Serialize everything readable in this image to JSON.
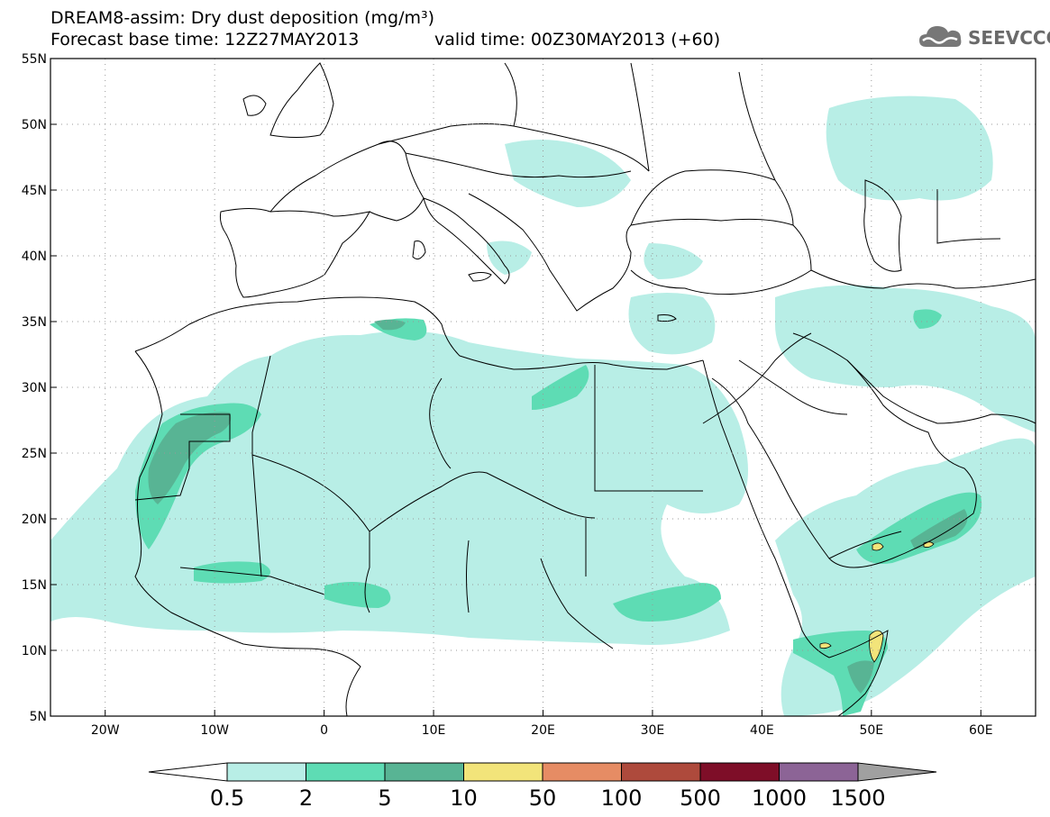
{
  "title_line1": "DREAM8-assim: Dry dust deposition (mg/m³)",
  "title_line2": "Forecast base time: 12Z27MAY2013",
  "title_valid": "valid time: 00Z30MAY2013 (+60)",
  "logo": {
    "text": "SEEVCCC",
    "icon": "cloud-icon"
  },
  "map": {
    "lon_range": [
      -25,
      65
    ],
    "lat_range": [
      5,
      55
    ],
    "lon_ticks": [
      "20W",
      "10W",
      "0",
      "10E",
      "20E",
      "30E",
      "40E",
      "50E",
      "60E"
    ],
    "lat_ticks": [
      "55N",
      "50N",
      "45N",
      "40N",
      "35N",
      "30N",
      "25N",
      "20N",
      "15N",
      "10N",
      "5N"
    ],
    "grid": "dotted"
  },
  "colorbar": {
    "labels": [
      "0.5",
      "2",
      "5",
      "10",
      "50",
      "100",
      "500",
      "1000",
      "1500"
    ],
    "colors": [
      "#ffffff",
      "#b8eee6",
      "#5edcb4",
      "#58b494",
      "#f2e47a",
      "#e68c64",
      "#ae4a3c",
      "#7e0e28",
      "#8c6496",
      "#a0a0a0"
    ]
  }
}
